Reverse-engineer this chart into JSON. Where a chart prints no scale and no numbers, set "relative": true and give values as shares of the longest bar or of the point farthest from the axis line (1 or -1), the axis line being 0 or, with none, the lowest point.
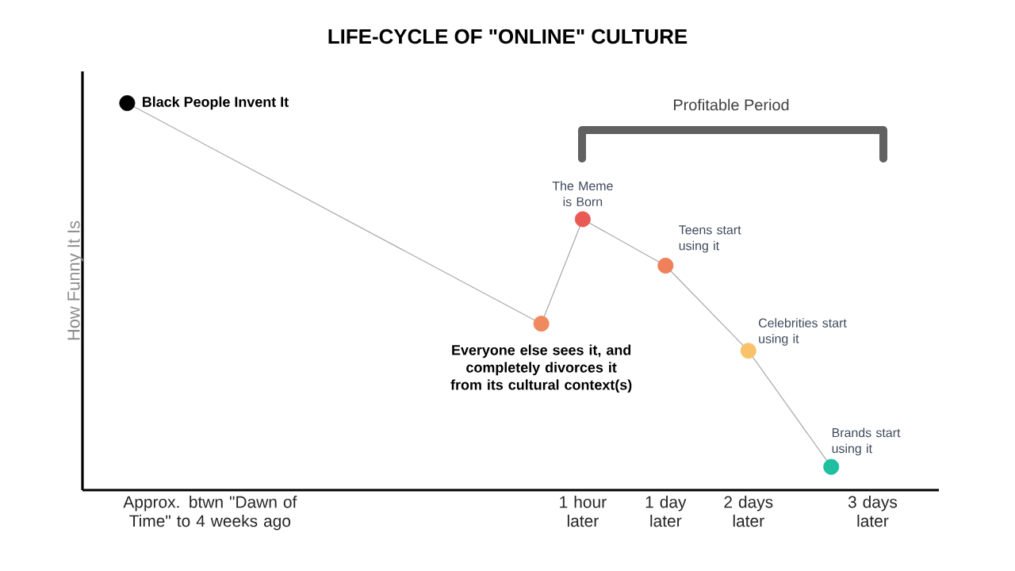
{
  "chart_data": {
    "type": "line",
    "title": "LIFE-CYCLE OF \"ONLINE\" CULTURE",
    "ylabel": "How Funny It Is",
    "relative": true,
    "categories": [
      null,
      null,
      "Approx. btwn \"Dawn of Time\" to 4 weeks ago",
      null,
      null,
      null,
      null,
      null,
      null,
      null,
      null,
      "1 hour later",
      null,
      "1 day later",
      null,
      "2 days later",
      null,
      null,
      "3 days later"
    ],
    "values": [
      1,
      null,
      null,
      null,
      null,
      null,
      null,
      null,
      null,
      null,
      0.43,
      0.7,
      null,
      0.58,
      null,
      0.36,
      null,
      0.06,
      null
    ],
    "color": "#a8a8a8",
    "colors": [
      "#000000",
      null,
      null,
      null,
      null,
      null,
      null,
      null,
      null,
      null,
      "#f0895e",
      "#ea5a55",
      null,
      "#f07f5c",
      null,
      "#f8c26a",
      null,
      "#1fbfa0",
      null
    ],
    "marker": "circle",
    "annotations": [
      "Black People Invent It",
      "Everyone else sees it, and completely divorces it from its cultural context(s)",
      "The Meme is Born",
      "Teens start using it",
      "Celebrities start using it",
      "Brands start using it",
      "Profitable Period"
    ]
  }
}
